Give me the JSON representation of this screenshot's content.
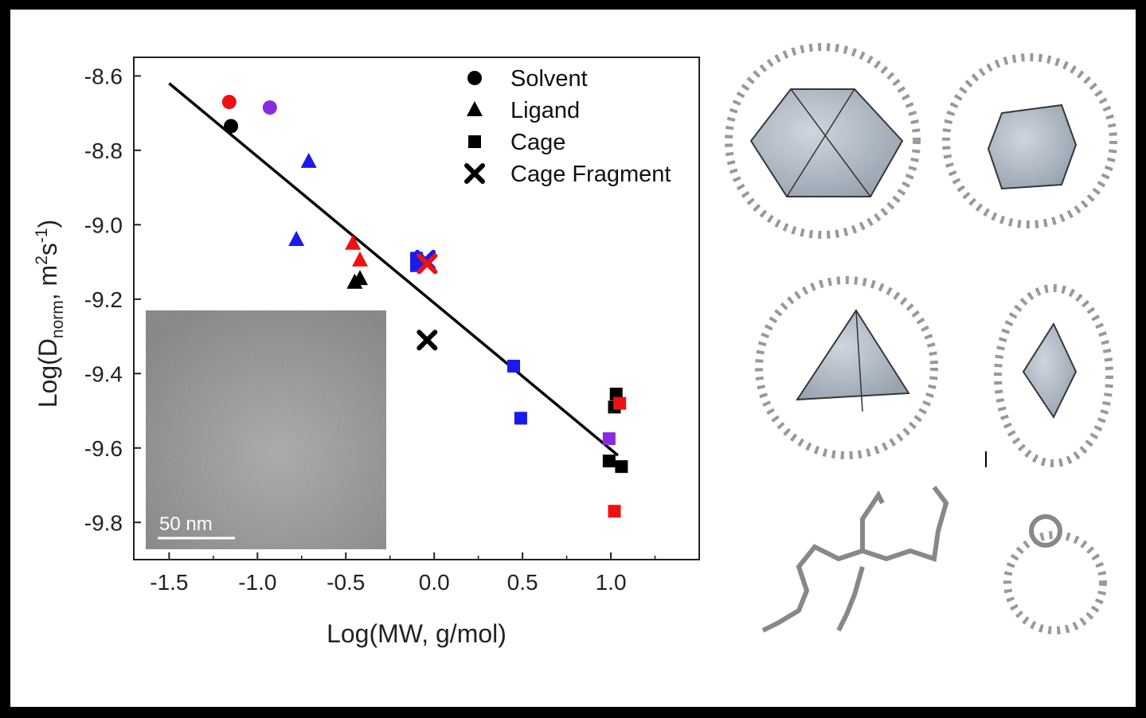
{
  "chart_data": {
    "type": "scatter",
    "xlabel": "Log(MW, g/mol)",
    "ylabel_main": "Log(D",
    "ylabel_sub": "norm",
    "ylabel_mid": ", m",
    "ylabel_sup1": "2",
    "ylabel_s": "s",
    "ylabel_sup2": "-1",
    "ylabel_end": ")",
    "xlim": [
      -1.7,
      1.5
    ],
    "ylim": [
      -9.9,
      -8.55
    ],
    "xticks": [
      -1.5,
      -1.0,
      -0.5,
      0.0,
      0.5,
      1.0
    ],
    "xtick_labels": [
      "-1.5",
      "-1.0",
      "-0.5",
      "0.0",
      "0.5",
      "1.0"
    ],
    "yticks": [
      -8.6,
      -8.8,
      -9.0,
      -9.2,
      -9.4,
      -9.6,
      -9.8
    ],
    "ytick_labels": [
      "-8.6",
      "-8.8",
      "-9.0",
      "-9.2",
      "-9.4",
      "-9.6",
      "-9.8"
    ],
    "legend": [
      {
        "label": "Solvent",
        "marker": "circle"
      },
      {
        "label": "Ligand",
        "marker": "triangle"
      },
      {
        "label": "Cage",
        "marker": "square"
      },
      {
        "label": "Cage Fragment",
        "marker": "cross"
      }
    ],
    "legend_position": "top-right",
    "fit_line": {
      "x": [
        -1.5,
        1.04
      ],
      "y": [
        -8.62,
        -9.62
      ]
    },
    "series": [
      {
        "marker": "circle",
        "points": [
          {
            "x": -1.16,
            "y": -8.67,
            "color": "#ee1111"
          },
          {
            "x": -1.15,
            "y": -8.735,
            "color": "#000000"
          },
          {
            "x": -0.93,
            "y": -8.685,
            "color": "#8a2be2"
          }
        ]
      },
      {
        "marker": "triangle",
        "points": [
          {
            "x": -0.71,
            "y": -8.83,
            "color": "#1a1aee"
          },
          {
            "x": -0.78,
            "y": -9.04,
            "color": "#1a1aee"
          },
          {
            "x": -0.46,
            "y": -9.05,
            "color": "#ee1111"
          },
          {
            "x": -0.42,
            "y": -9.095,
            "color": "#ee1111"
          },
          {
            "x": -0.45,
            "y": -9.155,
            "color": "#000000"
          },
          {
            "x": -0.42,
            "y": -9.145,
            "color": "#000000"
          }
        ]
      },
      {
        "marker": "square",
        "points": [
          {
            "x": -0.1,
            "y": -9.09,
            "color": "#1a1aee"
          },
          {
            "x": -0.1,
            "y": -9.11,
            "color": "#1a1aee"
          },
          {
            "x": 0.45,
            "y": -9.38,
            "color": "#1a1aee"
          },
          {
            "x": 0.49,
            "y": -9.52,
            "color": "#1a1aee"
          },
          {
            "x": 1.03,
            "y": -9.455,
            "color": "#000000"
          },
          {
            "x": 1.02,
            "y": -9.49,
            "color": "#000000"
          },
          {
            "x": 1.05,
            "y": -9.48,
            "color": "#ee1111"
          },
          {
            "x": 0.99,
            "y": -9.575,
            "color": "#8a2be2"
          },
          {
            "x": 0.99,
            "y": -9.635,
            "color": "#000000"
          },
          {
            "x": 1.06,
            "y": -9.65,
            "color": "#000000"
          },
          {
            "x": 1.02,
            "y": -9.77,
            "color": "#ee1111"
          }
        ]
      },
      {
        "marker": "cross",
        "points": [
          {
            "x": -0.05,
            "y": -9.095,
            "color": "#1a1aee"
          },
          {
            "x": -0.04,
            "y": -9.105,
            "color": "#ee1111"
          },
          {
            "x": -0.04,
            "y": -9.31,
            "color": "#000000"
          }
        ]
      }
    ]
  },
  "inset": {
    "scale_bar_label": "50 nm"
  }
}
